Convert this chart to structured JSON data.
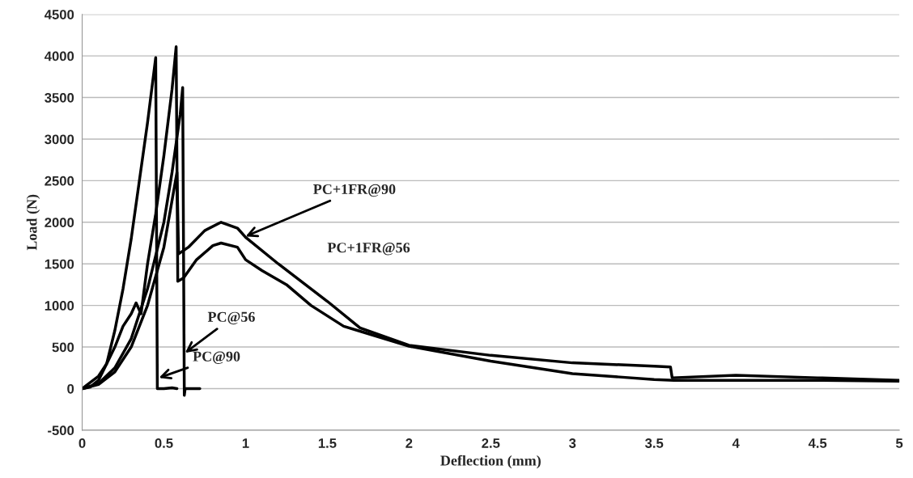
{
  "chart_data": {
    "type": "line",
    "xlabel": "Deflection (mm)",
    "ylabel": "Load (N)",
    "xlim": [
      0,
      5
    ],
    "xticks": [
      0,
      0.5,
      1,
      1.5,
      2,
      2.5,
      3,
      3.5,
      4,
      4.5,
      5
    ],
    "ylim": [
      -500,
      4500
    ],
    "yticks": [
      -500,
      0,
      500,
      1000,
      1500,
      2000,
      2500,
      3000,
      3500,
      4000,
      4500
    ],
    "grid": "y",
    "legend": false,
    "marker": "none",
    "line_style": "solid",
    "series": [
      {
        "color": "#000000",
        "x": [
          0,
          0.05,
          0.1,
          0.15,
          0.2,
          0.25,
          0.3,
          0.35,
          0.4,
          0.45,
          0.46,
          0.5,
          0.55,
          0.58
        ],
        "values": [
          0,
          20,
          100,
          300,
          700,
          1200,
          1800,
          2500,
          3200,
          3980,
          0,
          0,
          10,
          0
        ]
      },
      {
        "color": "#000000",
        "x": [
          0,
          0.1,
          0.2,
          0.3,
          0.4,
          0.5,
          0.55,
          0.6,
          0.615,
          0.625,
          0.63,
          0.7,
          0.72
        ],
        "values": [
          0,
          60,
          250,
          600,
          1200,
          2000,
          2600,
          3300,
          3620,
          -80,
          0,
          0,
          0
        ]
      },
      {
        "color": "#000000",
        "x": [
          0,
          0.1,
          0.15,
          0.2,
          0.25,
          0.3,
          0.33,
          0.36,
          0.4,
          0.45,
          0.5,
          0.55,
          0.575,
          0.585,
          0.62,
          0.7,
          0.8,
          0.85,
          0.95,
          1.0,
          1.1,
          1.25,
          1.4,
          1.6,
          1.7,
          2.0,
          2.5,
          3.0,
          3.5,
          3.62,
          4.0,
          4.5,
          5.0
        ],
        "values": [
          0,
          150,
          300,
          500,
          750,
          900,
          1030,
          900,
          1500,
          2100,
          2800,
          3600,
          4110,
          1290,
          1330,
          1550,
          1720,
          1750,
          1700,
          1550,
          1420,
          1250,
          1000,
          750,
          690,
          510,
          330,
          180,
          110,
          100,
          100,
          100,
          90
        ]
      },
      {
        "color": "#000000",
        "x": [
          0,
          0.1,
          0.2,
          0.3,
          0.4,
          0.5,
          0.58,
          0.59,
          0.65,
          0.75,
          0.85,
          0.95,
          1.0,
          1.2,
          1.5,
          1.7,
          2.0,
          2.5,
          3.0,
          3.5,
          3.6,
          3.61,
          4.0,
          4.5,
          5.0
        ],
        "values": [
          0,
          50,
          200,
          500,
          1000,
          1700,
          2600,
          1620,
          1700,
          1900,
          2000,
          1930,
          1820,
          1500,
          1050,
          730,
          520,
          400,
          310,
          270,
          260,
          130,
          160,
          130,
          100
        ]
      }
    ],
    "annotations": [
      {
        "text": "PC+1FR@90",
        "x": 1.0,
        "y": 1830
      },
      "PC+1FR@56",
      {
        "text": "PC@56",
        "x": 0.63,
        "y": 430
      },
      {
        "text": "PC@90",
        "x": 0.47,
        "y": 130
      }
    ]
  }
}
